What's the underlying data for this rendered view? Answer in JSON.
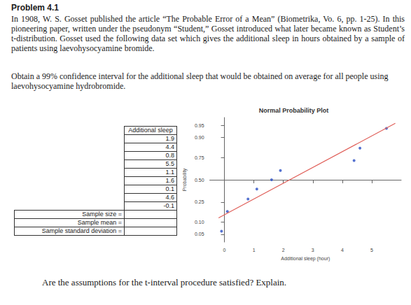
{
  "problem": {
    "title": "Problem 4.1",
    "paragraphs": [
      "In 1908, W. S. Gosset published the article “The Probable Error of a Mean” (Biometrika, Vo. 6, pp. 1-25). In this pioneering paper, written under the pseudonym “Student,” Gosset introduced what later became known as Student’s t-distribution. Gosset used the following data set which gives the additional sleep in hours obtained by a sample of patients using laevohysocyamine bromide.",
      "Obtain a 99% confidence interval for the additional sleep that would be obtained on average for all people using laevohysocyamine hydrobromide."
    ]
  },
  "table": {
    "header": "Additional sleep",
    "rows": [
      1.9,
      4.4,
      0.8,
      5.5,
      1.1,
      1.6,
      0.1,
      4.6,
      -0.1
    ],
    "summary": [
      "Sample size =",
      "Sample mean =",
      "Sample standard deviation ="
    ]
  },
  "chart_data": {
    "type": "scatter",
    "title": "Normal Probability Plot",
    "x_label": "Additional sleep (hour)",
    "y_label": "Probability",
    "x": [
      -0.1,
      0.1,
      0.8,
      1.1,
      1.6,
      1.9,
      4.4,
      4.6,
      5.5
    ],
    "y": [
      0.06,
      0.17,
      0.28,
      0.39,
      0.5,
      0.61,
      0.72,
      0.83,
      0.94
    ],
    "color": "#2b4fc4",
    "fit_line": {
      "x": [
        -0.2,
        5.8
      ],
      "y": [
        0.125,
        0.956
      ],
      "color": "#e0605a"
    },
    "xlim": [
      -0.5,
      6
    ],
    "xticks": [
      0,
      1,
      2,
      3,
      4,
      5
    ],
    "ylim": [
      0.03,
      0.97
    ],
    "yticks": [
      0.05,
      {
        "value": 0.1,
        "label": "0.10"
      },
      0.25,
      {
        "value": 0.5,
        "label": "0.50"
      },
      0.75,
      {
        "value": 0.9,
        "label": "0.90"
      },
      0.95
    ],
    "grid": false
  },
  "question": "Are the assumptions for the t-interval procedure satisfied? Explain."
}
